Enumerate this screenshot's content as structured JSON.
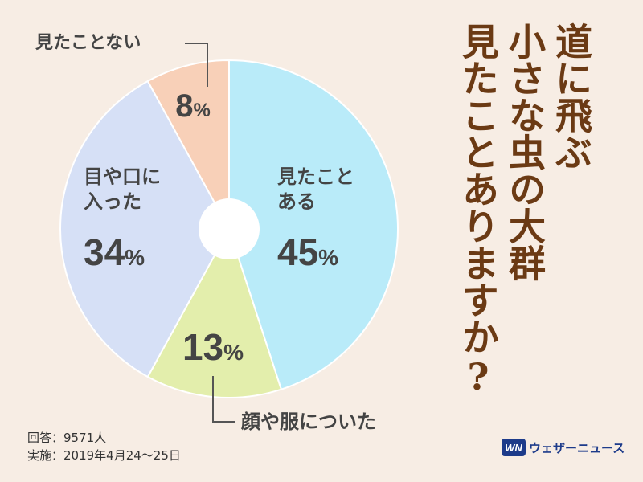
{
  "chart_data": {
    "type": "pie",
    "donut": true,
    "slices": [
      {
        "name": "見たことある",
        "label_lines": [
          "見たこと",
          "ある"
        ],
        "value": 45,
        "value_label": "45%",
        "color": "#b9ebf9"
      },
      {
        "name": "顔や服についた",
        "label_lines": [
          "顔や服についた"
        ],
        "value": 13,
        "value_label": "13%",
        "color": "#e3eeac"
      },
      {
        "name": "目や口に入った",
        "label_lines": [
          "目や口に",
          "入った"
        ],
        "value": 34,
        "value_label": "34%",
        "color": "#d6e0f6"
      },
      {
        "name": "見たことない",
        "label_lines": [
          "見たことない"
        ],
        "value": 8,
        "value_label": "8%",
        "color": "#f8d0b8"
      }
    ]
  },
  "title": {
    "lines": [
      "道に飛ぶ",
      "小さな虫の大群",
      "見たことありますか?"
    ]
  },
  "footer": {
    "respondents": "回答：9571人",
    "dates": "実施：2019年4月24〜25日"
  },
  "brand": {
    "logo": "WN",
    "name": "ウェザーニュース",
    "color": "#1d3b8a"
  },
  "colors": {
    "background": "#f7ede4",
    "title": "#6b3a14",
    "text": "#444444"
  }
}
